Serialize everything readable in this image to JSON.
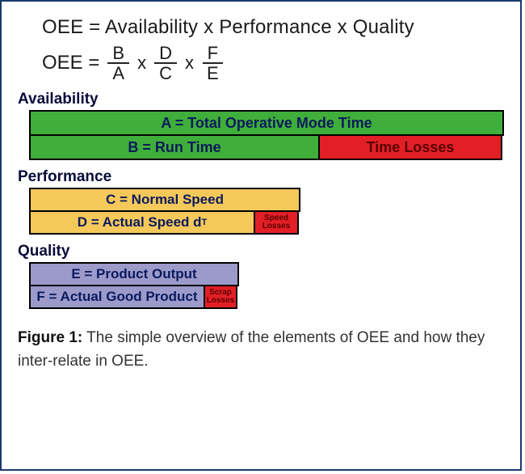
{
  "formula": {
    "line1": "OEE = Availability x Performance x Quality",
    "line2_lhs": "OEE =",
    "frac1_num": "B",
    "frac1_den": "A",
    "times1": "x",
    "frac2_num": "D",
    "frac2_den": "C",
    "times2": "x",
    "frac3_num": "F",
    "frac3_den": "E"
  },
  "availability": {
    "label": "Availability",
    "top": "A = Total Operative Mode Time",
    "left": "B = Run Time",
    "loss": "Time Losses",
    "top_color": "#3fae3a",
    "left_color": "#3fae3a",
    "loss_color": "#e21f26",
    "text_color": "#0b1a5c",
    "loss_text_color": "#5a0000"
  },
  "performance": {
    "label": "Performance",
    "top": "C = Normal Speed",
    "d_label": "D = Actual Speed d",
    "d_sub": "T",
    "loss_line1": "Speed",
    "loss_line2": "Losses",
    "top_color": "#f5c85a",
    "d_color": "#f5c85a",
    "loss_color": "#e21f26",
    "text_color": "#0b1a5c",
    "loss_text_color": "#5a0000"
  },
  "quality": {
    "label": "Quality",
    "top": "E = Product Output",
    "f": "F = Actual Good Product",
    "loss_line1": "Scrap",
    "loss_line2": "Losses",
    "top_color": "#9c9acb",
    "f_color": "#9c9acb",
    "loss_color": "#e21f26",
    "text_color": "#0b1a5c",
    "loss_text_color": "#5a0000"
  },
  "caption": {
    "fig": "Figure 1:",
    "text": " The simple overview of the elements of OEE and how they inter-relate in OEE."
  }
}
